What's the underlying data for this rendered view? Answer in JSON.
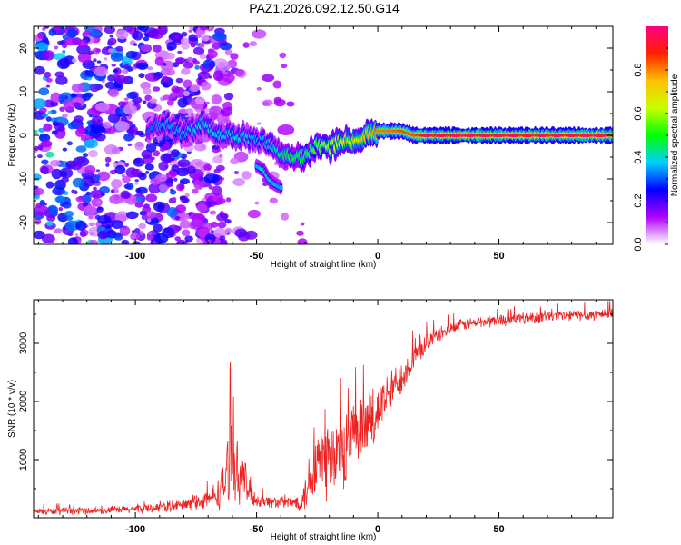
{
  "title": "PAZ1.2026.092.12.50.G14",
  "colorbar": {
    "label": "Normalized spectral amplitude",
    "ticks": [
      0.0,
      0.2,
      0.4,
      0.6,
      0.8
    ],
    "tick_labels": [
      "0.0",
      "0.2",
      "0.4",
      "0.6",
      "0.8"
    ],
    "range": [
      0,
      1
    ],
    "stops": [
      "#ffffff",
      "#b000ff",
      "#0000ff",
      "#00d0ff",
      "#00ff00",
      "#c8ff00",
      "#ffc000",
      "#ff2000",
      "#ff0080"
    ]
  },
  "chart_data": [
    {
      "type": "heatmap",
      "title": "",
      "xlabel": "Height of straight line (km)",
      "ylabel": "Frequency (Hz)",
      "xlim": [
        -142,
        97
      ],
      "ylim": [
        -25,
        25
      ],
      "xticks": [
        -100,
        -50,
        0,
        50
      ],
      "xtick_labels": [
        "-100",
        "-50",
        "0",
        "50"
      ],
      "yticks": [
        -20,
        -10,
        0,
        10,
        20
      ],
      "ytick_labels": [
        "-20",
        "-10",
        "0",
        "10",
        "20"
      ],
      "ridge": {
        "x": [
          -95,
          -88,
          -80,
          -72,
          -65,
          -58,
          -50,
          -45,
          -40,
          -35,
          -30,
          -25,
          -20,
          -15,
          -10,
          -5,
          0,
          5,
          10,
          15,
          20,
          25,
          30,
          40,
          50,
          60,
          70,
          80,
          90,
          97
        ],
        "y": [
          1,
          3,
          0,
          3,
          0,
          0,
          -1,
          -2,
          -4,
          -5,
          -5,
          -2,
          -3,
          -1,
          -1,
          0,
          1,
          1,
          1,
          0,
          0,
          0,
          0,
          0,
          0,
          0,
          0,
          0,
          0,
          0
        ],
        "amplitude": [
          0.3,
          0.35,
          0.35,
          0.4,
          0.38,
          0.4,
          0.35,
          0.35,
          0.45,
          0.5,
          0.5,
          0.55,
          0.6,
          0.65,
          0.7,
          0.75,
          0.8,
          0.82,
          0.85,
          0.85,
          0.9,
          0.92,
          0.93,
          0.93,
          0.93,
          0.93,
          0.93,
          0.93,
          0.93,
          0.93
        ]
      },
      "secondary_branch": {
        "x": [
          -50,
          -47,
          -45,
          -43,
          -40
        ],
        "y": [
          -7,
          -8,
          -10,
          -11,
          -12
        ],
        "amplitude": [
          0.35,
          0.4,
          0.4,
          0.38,
          0.35
        ]
      },
      "noise_region_x": [
        -142,
        -30
      ]
    },
    {
      "type": "line",
      "title": "",
      "xlabel": "Height of straight line (km)",
      "ylabel": "SNR (10 * v/v)",
      "xlim": [
        -142,
        97
      ],
      "ylim": [
        0,
        3750
      ],
      "xticks": [
        -100,
        -50,
        0,
        50
      ],
      "xtick_labels": [
        "-100",
        "-50",
        "0",
        "50"
      ],
      "yticks": [
        1000,
        2000,
        3000
      ],
      "ytick_labels": [
        "1000",
        "2000",
        "3000"
      ],
      "color": "#ee2222",
      "series": [
        {
          "name": "SNR",
          "x": [
            -142,
            -130,
            -120,
            -110,
            -100,
            -90,
            -80,
            -75,
            -70,
            -65,
            -62,
            -60,
            -58,
            -56,
            -54,
            -52,
            -50,
            -45,
            -40,
            -35,
            -32,
            -30,
            -28,
            -25,
            -22,
            -20,
            -18,
            -15,
            -12,
            -10,
            -8,
            -5,
            -2,
            0,
            5,
            10,
            15,
            20,
            25,
            30,
            35,
            40,
            50,
            60,
            70,
            80,
            90,
            97
          ],
          "mean": [
            110,
            110,
            120,
            130,
            150,
            180,
            220,
            260,
            300,
            450,
            800,
            1100,
            800,
            700,
            550,
            400,
            300,
            280,
            260,
            260,
            280,
            400,
            700,
            1000,
            900,
            1100,
            950,
            1150,
            1250,
            1300,
            1400,
            1550,
            1700,
            1850,
            2150,
            2450,
            2750,
            3000,
            3150,
            3250,
            3320,
            3350,
            3400,
            3430,
            3460,
            3480,
            3500,
            3510
          ],
          "amplitude": [
            60,
            60,
            60,
            60,
            70,
            80,
            100,
            120,
            150,
            300,
            600,
            700,
            500,
            400,
            350,
            200,
            120,
            100,
            100,
            100,
            150,
            300,
            500,
            700,
            700,
            800,
            700,
            700,
            700,
            650,
            600,
            550,
            500,
            450,
            350,
            300,
            200,
            150,
            120,
            100,
            100,
            100,
            100,
            100,
            100,
            100,
            100,
            100
          ]
        }
      ]
    }
  ]
}
